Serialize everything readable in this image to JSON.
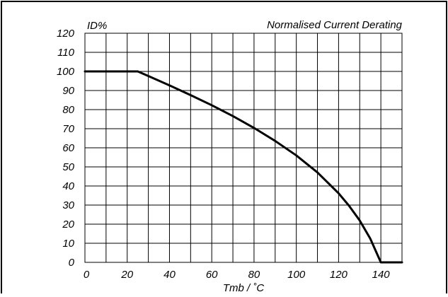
{
  "chart_data": {
    "type": "line",
    "title": "Normalised Current Derating",
    "xlabel": "Tmb / ˚C",
    "ylabel": "ID%",
    "xlim": [
      0,
      150
    ],
    "ylim": [
      0,
      120
    ],
    "x_ticks": [
      0,
      20,
      40,
      60,
      80,
      100,
      120,
      140
    ],
    "y_ticks": [
      0,
      10,
      20,
      30,
      40,
      50,
      60,
      70,
      80,
      90,
      100,
      110,
      120
    ],
    "x_grid_step": 10,
    "y_grid_step": 10,
    "grid": true,
    "legend": "none",
    "series": [
      {
        "x": [
          0,
          25,
          30,
          40,
          50,
          60,
          70,
          80,
          90,
          100,
          110,
          120,
          125,
          130,
          135,
          140,
          145,
          148,
          150
        ],
        "y": [
          100,
          100,
          97.6,
          92.7,
          87.6,
          82.3,
          76.6,
          70.4,
          63.6,
          56.0,
          47.1,
          36.2,
          29.6,
          21.9,
          12.4,
          0.0,
          0.0,
          0.0,
          0.0
        ]
      }
    ]
  }
}
